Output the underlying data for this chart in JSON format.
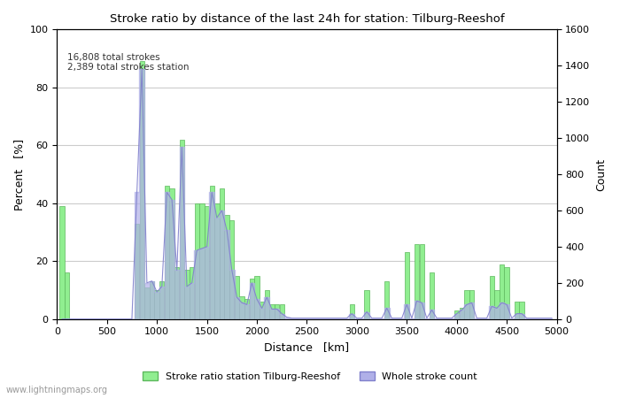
{
  "title": "Stroke ratio by distance of the last 24h for station: Tilburg-Reeshof",
  "xlabel": "Distance   [km]",
  "ylabel_left": "Percent   [%]",
  "ylabel_right": "Count",
  "annotation": "16,808 total strokes\n2,389 total strokes station",
  "xlim": [
    0,
    5000
  ],
  "ylim_left": [
    0,
    100
  ],
  "ylim_right": [
    0,
    1600
  ],
  "xticks": [
    0,
    500,
    1000,
    1500,
    2000,
    2500,
    3000,
    3500,
    4000,
    4500,
    5000
  ],
  "yticks_left": [
    0,
    20,
    40,
    60,
    80,
    100
  ],
  "yticks_right": [
    0,
    200,
    400,
    600,
    800,
    1000,
    1200,
    1400,
    1600
  ],
  "bar_color": "#90ee90",
  "bar_edge_color": "#5db85d",
  "fill_color": "#b0b0e8",
  "fill_edge_color": "#8080cc",
  "background_color": "#ffffff",
  "grid_color": "#cccccc",
  "bin_width": 50,
  "legend_bar_label": "Stroke ratio station Tilburg-Reeshof",
  "legend_fill_label": "Whole stroke count",
  "watermark": "www.lightningmaps.org",
  "ratio_data": [
    [
      50,
      39
    ],
    [
      100,
      16
    ],
    [
      150,
      0
    ],
    [
      200,
      0
    ],
    [
      250,
      0
    ],
    [
      300,
      0
    ],
    [
      350,
      0
    ],
    [
      400,
      0
    ],
    [
      450,
      0
    ],
    [
      500,
      0
    ],
    [
      550,
      0
    ],
    [
      600,
      0
    ],
    [
      650,
      0
    ],
    [
      700,
      0
    ],
    [
      750,
      0
    ],
    [
      800,
      33
    ],
    [
      850,
      89
    ],
    [
      900,
      11
    ],
    [
      950,
      13
    ],
    [
      1000,
      10
    ],
    [
      1050,
      13
    ],
    [
      1100,
      46
    ],
    [
      1150,
      45
    ],
    [
      1200,
      18
    ],
    [
      1250,
      62
    ],
    [
      1300,
      17
    ],
    [
      1350,
      18
    ],
    [
      1400,
      40
    ],
    [
      1450,
      40
    ],
    [
      1500,
      39
    ],
    [
      1550,
      46
    ],
    [
      1600,
      40
    ],
    [
      1650,
      45
    ],
    [
      1700,
      36
    ],
    [
      1750,
      34
    ],
    [
      1800,
      15
    ],
    [
      1850,
      8
    ],
    [
      1900,
      7
    ],
    [
      1950,
      14
    ],
    [
      2000,
      15
    ],
    [
      2050,
      6
    ],
    [
      2100,
      10
    ],
    [
      2150,
      5
    ],
    [
      2200,
      5
    ],
    [
      2250,
      5
    ],
    [
      2300,
      0
    ],
    [
      2350,
      0
    ],
    [
      2400,
      0
    ],
    [
      2450,
      0
    ],
    [
      2500,
      0
    ],
    [
      2550,
      0
    ],
    [
      2600,
      0
    ],
    [
      2650,
      0
    ],
    [
      2700,
      0
    ],
    [
      2750,
      0
    ],
    [
      2800,
      0
    ],
    [
      2850,
      0
    ],
    [
      2900,
      0
    ],
    [
      2950,
      5
    ],
    [
      3000,
      0
    ],
    [
      3050,
      0
    ],
    [
      3100,
      10
    ],
    [
      3150,
      0
    ],
    [
      3200,
      0
    ],
    [
      3250,
      0
    ],
    [
      3300,
      13
    ],
    [
      3350,
      0
    ],
    [
      3400,
      0
    ],
    [
      3450,
      0
    ],
    [
      3500,
      23
    ],
    [
      3550,
      0
    ],
    [
      3600,
      26
    ],
    [
      3650,
      26
    ],
    [
      3700,
      0
    ],
    [
      3750,
      16
    ],
    [
      3800,
      0
    ],
    [
      3850,
      0
    ],
    [
      3900,
      0
    ],
    [
      3950,
      0
    ],
    [
      4000,
      3
    ],
    [
      4050,
      4
    ],
    [
      4100,
      10
    ],
    [
      4150,
      10
    ],
    [
      4200,
      0
    ],
    [
      4250,
      0
    ],
    [
      4300,
      0
    ],
    [
      4350,
      15
    ],
    [
      4400,
      10
    ],
    [
      4450,
      19
    ],
    [
      4500,
      18
    ],
    [
      4550,
      0
    ],
    [
      4600,
      6
    ],
    [
      4650,
      6
    ],
    [
      4700,
      0
    ],
    [
      4750,
      0
    ],
    [
      4800,
      0
    ],
    [
      4850,
      0
    ],
    [
      4900,
      0
    ],
    [
      4950,
      0
    ]
  ],
  "count_data": [
    [
      50,
      0
    ],
    [
      100,
      0
    ],
    [
      150,
      0
    ],
    [
      200,
      0
    ],
    [
      250,
      0
    ],
    [
      300,
      0
    ],
    [
      350,
      0
    ],
    [
      400,
      0
    ],
    [
      450,
      0
    ],
    [
      500,
      0
    ],
    [
      550,
      0
    ],
    [
      600,
      0
    ],
    [
      650,
      0
    ],
    [
      700,
      0
    ],
    [
      750,
      0
    ],
    [
      800,
      700
    ],
    [
      850,
      1380
    ],
    [
      900,
      200
    ],
    [
      950,
      210
    ],
    [
      1000,
      150
    ],
    [
      1050,
      180
    ],
    [
      1100,
      700
    ],
    [
      1150,
      660
    ],
    [
      1200,
      270
    ],
    [
      1250,
      950
    ],
    [
      1300,
      180
    ],
    [
      1350,
      200
    ],
    [
      1400,
      380
    ],
    [
      1450,
      390
    ],
    [
      1500,
      400
    ],
    [
      1550,
      700
    ],
    [
      1600,
      560
    ],
    [
      1650,
      600
    ],
    [
      1700,
      490
    ],
    [
      1750,
      270
    ],
    [
      1800,
      120
    ],
    [
      1850,
      90
    ],
    [
      1900,
      80
    ],
    [
      1950,
      200
    ],
    [
      2000,
      110
    ],
    [
      2050,
      60
    ],
    [
      2100,
      120
    ],
    [
      2150,
      55
    ],
    [
      2200,
      55
    ],
    [
      2250,
      30
    ],
    [
      2300,
      10
    ],
    [
      2350,
      5
    ],
    [
      2400,
      5
    ],
    [
      2450,
      5
    ],
    [
      2500,
      5
    ],
    [
      2550,
      5
    ],
    [
      2600,
      5
    ],
    [
      2650,
      5
    ],
    [
      2700,
      5
    ],
    [
      2750,
      5
    ],
    [
      2800,
      5
    ],
    [
      2850,
      5
    ],
    [
      2900,
      5
    ],
    [
      2950,
      30
    ],
    [
      3000,
      5
    ],
    [
      3050,
      5
    ],
    [
      3100,
      40
    ],
    [
      3150,
      5
    ],
    [
      3200,
      5
    ],
    [
      3250,
      5
    ],
    [
      3300,
      60
    ],
    [
      3350,
      5
    ],
    [
      3400,
      5
    ],
    [
      3450,
      5
    ],
    [
      3500,
      80
    ],
    [
      3550,
      5
    ],
    [
      3600,
      100
    ],
    [
      3650,
      90
    ],
    [
      3700,
      5
    ],
    [
      3750,
      50
    ],
    [
      3800,
      5
    ],
    [
      3850,
      5
    ],
    [
      3900,
      5
    ],
    [
      3950,
      5
    ],
    [
      4000,
      30
    ],
    [
      4050,
      50
    ],
    [
      4100,
      80
    ],
    [
      4150,
      90
    ],
    [
      4200,
      5
    ],
    [
      4250,
      5
    ],
    [
      4300,
      5
    ],
    [
      4350,
      70
    ],
    [
      4400,
      60
    ],
    [
      4450,
      90
    ],
    [
      4500,
      80
    ],
    [
      4550,
      5
    ],
    [
      4600,
      30
    ],
    [
      4650,
      30
    ],
    [
      4700,
      5
    ],
    [
      4750,
      5
    ],
    [
      4800,
      5
    ],
    [
      4850,
      5
    ],
    [
      4900,
      5
    ],
    [
      4950,
      5
    ]
  ]
}
